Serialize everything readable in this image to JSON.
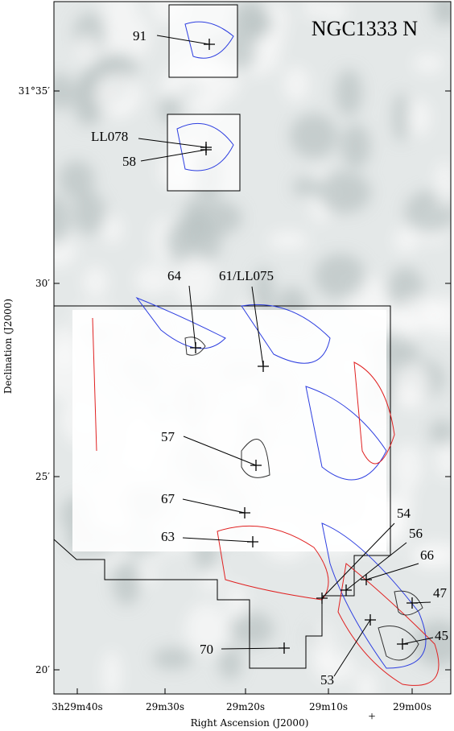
{
  "title": "NGC1333 N",
  "x_axis": {
    "label": "Right Ascension (J2000)",
    "ticks": [
      "3h29m40s",
      "29m30s",
      "29m20s",
      "29m10s",
      "29m00s"
    ]
  },
  "y_axis": {
    "label": "Declination (J2000)",
    "ticks": [
      "31°35′",
      "30′",
      "25′",
      "20′"
    ]
  },
  "sources": [
    "91",
    "LL078",
    "58",
    "64",
    "61/LL075",
    "57",
    "67",
    "63",
    "54",
    "56",
    "66",
    "47",
    "45",
    "70",
    "53"
  ]
}
